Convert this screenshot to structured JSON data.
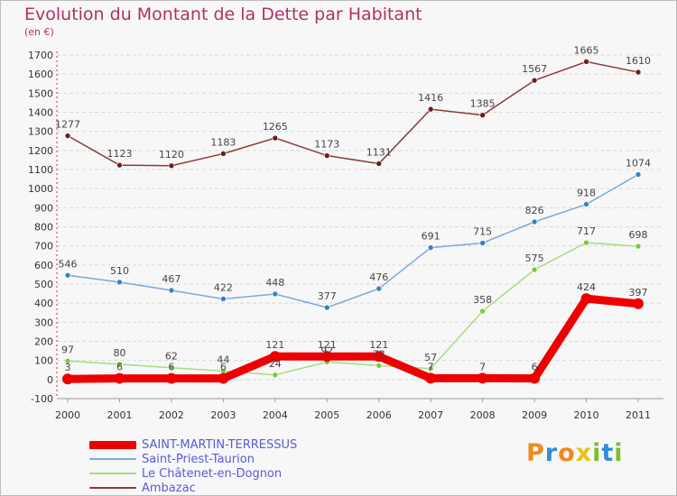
{
  "header": {
    "title": "Evolution du Montant de la Dette par Habitant",
    "subtitle": "(en €)"
  },
  "logo": {
    "text": [
      "P",
      "r",
      "o",
      "x",
      "i",
      "t",
      "i"
    ],
    "colors": [
      "#f08a1e",
      "#2f8fd8",
      "#f08a1e",
      "#e8c21a",
      "#7cbf2a",
      "#2f8fd8",
      "#7cbf2a"
    ]
  },
  "chart_data": {
    "type": "line",
    "x": [
      "2000",
      "2001",
      "2002",
      "2003",
      "2004",
      "2005",
      "2006",
      "2007",
      "2008",
      "2009",
      "2010",
      "2011"
    ],
    "ylim": [
      -100,
      1700
    ],
    "yticks": [
      -100,
      0,
      100,
      200,
      300,
      400,
      500,
      600,
      700,
      800,
      900,
      1000,
      1100,
      1200,
      1300,
      1400,
      1500,
      1600,
      1700
    ],
    "grid": "horizontal",
    "legend_position": "bottom-left",
    "series": [
      {
        "name": "SAINT-MARTIN-TERRESSUS",
        "values": [
          3,
          6,
          6,
          6,
          121,
          121,
          121,
          7,
          7,
          6,
          424,
          397
        ],
        "labels": [
          "3",
          "6",
          "6",
          "6",
          "121",
          "121",
          "121",
          "7",
          "7",
          "6",
          "424",
          "397"
        ],
        "color": "#ee0000",
        "bold": true
      },
      {
        "name": "Saint-Priest-Taurion",
        "values": [
          546,
          510,
          467,
          422,
          448,
          377,
          476,
          691,
          715,
          826,
          918,
          1074
        ],
        "labels": [
          "546",
          "510",
          "467",
          "422",
          "448",
          "377",
          "476",
          "691",
          "715",
          "826",
          "918",
          "1074"
        ],
        "color": "#7fa8d9",
        "marker": "#3e7ec4"
      },
      {
        "name": "Le Châtenet-en-Dognon",
        "values": [
          97,
          80,
          62,
          44,
          24,
          92,
          73,
          57,
          358,
          575,
          717,
          698
        ],
        "labels": [
          "97",
          "80",
          "62",
          "44",
          "24",
          "92",
          "73",
          "57",
          "358",
          "575",
          "717",
          "698"
        ],
        "color": "#a6dc80",
        "marker": "#7cc83a"
      },
      {
        "name": "Ambazac",
        "values": [
          1277,
          1123,
          1120,
          1183,
          1265,
          1173,
          1131,
          1416,
          1385,
          1567,
          1665,
          1610
        ],
        "labels": [
          "1277",
          "1123",
          "1120",
          "1183",
          "1265",
          "1173",
          "1131",
          "1416",
          "1385",
          "1567",
          "1665",
          "1610"
        ],
        "color": "#8a3a3a",
        "marker": "#6a1e1e"
      }
    ]
  }
}
